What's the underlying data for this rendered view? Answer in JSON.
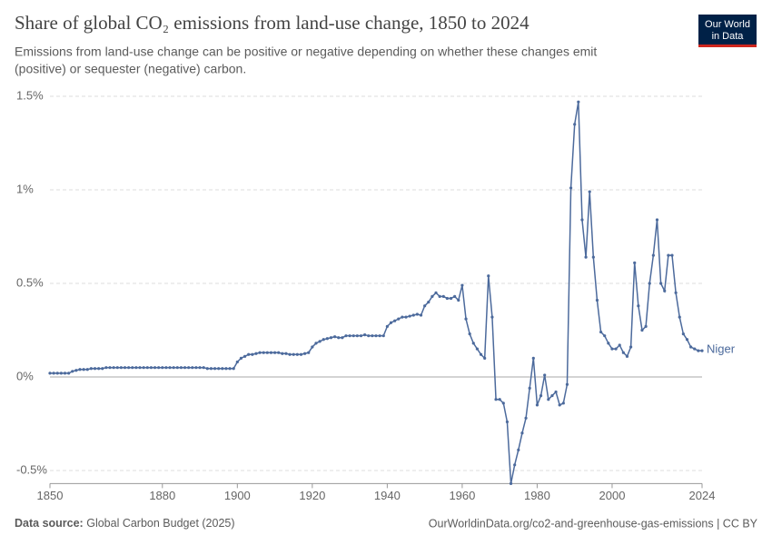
{
  "chart_data": {
    "type": "line",
    "title": "Share of global CO₂ emissions from land-use change, 1850 to 2024",
    "subtitle_lines": [
      "Emissions from land-use change can be positive or negative depending on whether these changes emit",
      "(positive) or sequester (negative) carbon."
    ],
    "logo": [
      "Our World",
      "in Data"
    ],
    "source_label": "Data source:",
    "source": "Global Carbon Budget (2025)",
    "footer_right": "OurWorldinData.org/co2-and-greenhouse-gas-emissions | CC BY",
    "x": [
      1850,
      1851,
      1852,
      1853,
      1854,
      1855,
      1856,
      1857,
      1858,
      1859,
      1860,
      1861,
      1862,
      1863,
      1864,
      1865,
      1866,
      1867,
      1868,
      1869,
      1870,
      1871,
      1872,
      1873,
      1874,
      1875,
      1876,
      1877,
      1878,
      1879,
      1880,
      1881,
      1882,
      1883,
      1884,
      1885,
      1886,
      1887,
      1888,
      1889,
      1890,
      1891,
      1892,
      1893,
      1894,
      1895,
      1896,
      1897,
      1898,
      1899,
      1900,
      1901,
      1902,
      1903,
      1904,
      1905,
      1906,
      1907,
      1908,
      1909,
      1910,
      1911,
      1912,
      1913,
      1914,
      1915,
      1916,
      1917,
      1918,
      1919,
      1920,
      1921,
      1922,
      1923,
      1924,
      1925,
      1926,
      1927,
      1928,
      1929,
      1930,
      1931,
      1932,
      1933,
      1934,
      1935,
      1936,
      1937,
      1938,
      1939,
      1940,
      1941,
      1942,
      1943,
      1944,
      1945,
      1946,
      1947,
      1948,
      1949,
      1950,
      1951,
      1952,
      1953,
      1954,
      1955,
      1956,
      1957,
      1958,
      1959,
      1960,
      1961,
      1962,
      1963,
      1964,
      1965,
      1966,
      1967,
      1968,
      1969,
      1970,
      1971,
      1972,
      1973,
      1974,
      1975,
      1976,
      1977,
      1978,
      1979,
      1980,
      1981,
      1982,
      1983,
      1984,
      1985,
      1986,
      1987,
      1988,
      1989,
      1990,
      1991,
      1992,
      1993,
      1994,
      1995,
      1996,
      1997,
      1998,
      1999,
      2000,
      2001,
      2002,
      2003,
      2004,
      2005,
      2006,
      2007,
      2008,
      2009,
      2010,
      2011,
      2012,
      2013,
      2014,
      2015,
      2016,
      2017,
      2018,
      2019,
      2020,
      2021,
      2022,
      2023,
      2024
    ],
    "series": [
      {
        "name": "Niger",
        "color": "#4c6a9c",
        "values": [
          0.02,
          0.02,
          0.02,
          0.02,
          0.02,
          0.02,
          0.03,
          0.035,
          0.04,
          0.04,
          0.04,
          0.045,
          0.045,
          0.045,
          0.045,
          0.05,
          0.05,
          0.05,
          0.05,
          0.05,
          0.05,
          0.05,
          0.05,
          0.05,
          0.05,
          0.05,
          0.05,
          0.05,
          0.05,
          0.05,
          0.05,
          0.05,
          0.05,
          0.05,
          0.05,
          0.05,
          0.05,
          0.05,
          0.05,
          0.05,
          0.05,
          0.05,
          0.045,
          0.045,
          0.045,
          0.045,
          0.045,
          0.045,
          0.045,
          0.045,
          0.08,
          0.1,
          0.11,
          0.12,
          0.12,
          0.125,
          0.13,
          0.13,
          0.13,
          0.13,
          0.13,
          0.13,
          0.125,
          0.125,
          0.12,
          0.12,
          0.12,
          0.12,
          0.125,
          0.13,
          0.16,
          0.18,
          0.19,
          0.2,
          0.205,
          0.21,
          0.215,
          0.21,
          0.21,
          0.22,
          0.22,
          0.22,
          0.22,
          0.22,
          0.225,
          0.22,
          0.22,
          0.22,
          0.22,
          0.22,
          0.27,
          0.29,
          0.3,
          0.31,
          0.32,
          0.32,
          0.325,
          0.33,
          0.335,
          0.33,
          0.38,
          0.4,
          0.43,
          0.45,
          0.43,
          0.43,
          0.42,
          0.42,
          0.43,
          0.41,
          0.49,
          0.31,
          0.23,
          0.18,
          0.15,
          0.12,
          0.1,
          0.54,
          0.32,
          -0.12,
          -0.12,
          -0.14,
          -0.24,
          -0.57,
          -0.47,
          -0.39,
          -0.3,
          -0.22,
          -0.06,
          0.1,
          -0.15,
          -0.1,
          0.01,
          -0.12,
          -0.1,
          -0.08,
          -0.15,
          -0.14,
          -0.04,
          1.01,
          1.35,
          1.47,
          0.84,
          0.64,
          0.99,
          0.64,
          0.41,
          0.24,
          0.22,
          0.18,
          0.15,
          0.15,
          0.17,
          0.13,
          0.11,
          0.16,
          0.61,
          0.38,
          0.25,
          0.27,
          0.5,
          0.65,
          0.84,
          0.5,
          0.46,
          0.65,
          0.65,
          0.45,
          0.32,
          0.23,
          0.2,
          0.16,
          0.15,
          0.14,
          0.14
        ]
      }
    ],
    "xlim": [
      1850,
      2024
    ],
    "xticks": [
      1850,
      1880,
      1900,
      1920,
      1940,
      1960,
      1980,
      2000,
      2024
    ],
    "ylim": [
      -0.57,
      1.5
    ],
    "yticks": [
      {
        "value": -0.5,
        "label": "-0.5%"
      },
      {
        "value": 0,
        "label": "0%"
      },
      {
        "value": 0.5,
        "label": "0.5%"
      },
      {
        "value": 1,
        "label": "1%"
      },
      {
        "value": 1.5,
        "label": "1.5%"
      }
    ],
    "grid": true
  }
}
